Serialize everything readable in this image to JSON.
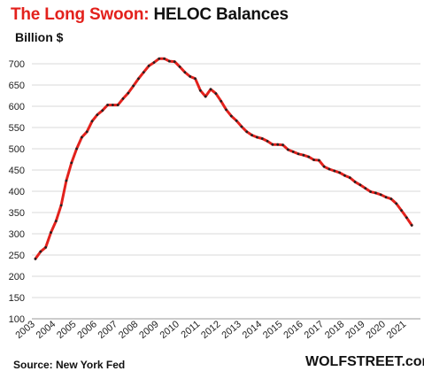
{
  "chart_data": {
    "type": "line",
    "title_prefix": "The Long Swoon:",
    "title_main": "HELOC Balances",
    "ylabel": "Billion $",
    "xlabel": "",
    "source": "Source: New York Fed",
    "brand": "WOLFSTREET.com",
    "grid": "horizontal",
    "ylim": [
      100,
      700
    ],
    "yticks": [
      100,
      150,
      200,
      250,
      300,
      350,
      400,
      450,
      500,
      550,
      600,
      650,
      700
    ],
    "xlim": [
      2003,
      2021.5
    ],
    "xticks": [
      "2003",
      "2004",
      "2005",
      "2006",
      "2007",
      "2008",
      "2009",
      "2010",
      "2011",
      "2012",
      "2013",
      "2014",
      "2015",
      "2016",
      "2017",
      "2018",
      "2019",
      "2020",
      "2021"
    ],
    "series": [
      {
        "line_color": "#e3211c",
        "marker_color": "#222222",
        "x": [
          2003.0,
          2003.25,
          2003.5,
          2003.75,
          2004.0,
          2004.25,
          2004.5,
          2004.75,
          2005.0,
          2005.25,
          2005.5,
          2005.75,
          2006.0,
          2006.25,
          2006.5,
          2006.75,
          2007.0,
          2007.25,
          2007.5,
          2007.75,
          2008.0,
          2008.25,
          2008.5,
          2008.75,
          2009.0,
          2009.25,
          2009.5,
          2009.75,
          2010.0,
          2010.25,
          2010.5,
          2010.75,
          2011.0,
          2011.25,
          2011.5,
          2011.75,
          2012.0,
          2012.25,
          2012.5,
          2012.75,
          2013.0,
          2013.25,
          2013.5,
          2013.75,
          2014.0,
          2014.25,
          2014.5,
          2014.75,
          2015.0,
          2015.25,
          2015.5,
          2015.75,
          2016.0,
          2016.25,
          2016.5,
          2016.75,
          2017.0,
          2017.25,
          2017.5,
          2017.75,
          2018.0,
          2018.25,
          2018.5,
          2018.75,
          2019.0,
          2019.25,
          2019.5,
          2019.75,
          2020.0,
          2020.25,
          2020.5,
          2020.75,
          2021.0,
          2021.25
        ],
        "values": [
          241,
          258,
          268,
          303,
          330,
          367,
          425,
          467,
          500,
          527,
          540,
          565,
          580,
          590,
          603,
          603,
          603,
          618,
          631,
          648,
          665,
          680,
          695,
          703,
          712,
          712,
          706,
          705,
          693,
          680,
          670,
          665,
          637,
          623,
          640,
          630,
          612,
          592,
          577,
          566,
          552,
          540,
          532,
          527,
          524,
          518,
          510,
          510,
          509,
          498,
          493,
          488,
          485,
          481,
          474,
          473,
          458,
          452,
          448,
          444,
          437,
          432,
          422,
          415,
          407,
          399,
          396,
          392,
          386,
          382,
          371,
          355,
          338,
          320
        ]
      }
    ]
  }
}
